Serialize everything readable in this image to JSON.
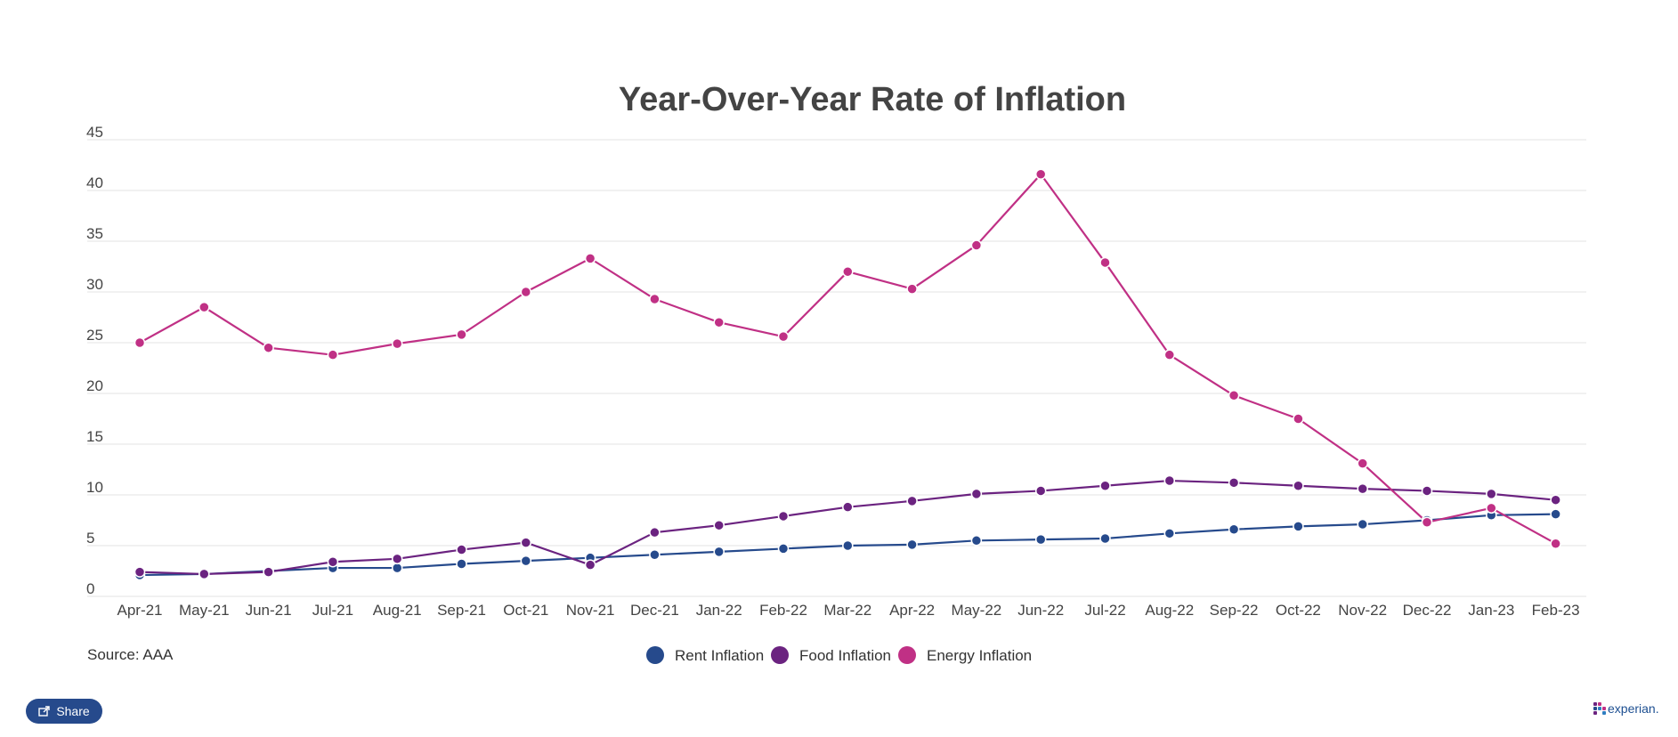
{
  "chart_data": {
    "type": "line",
    "title": "Year-Over-Year Rate of Inflation",
    "xlabel": "",
    "ylabel": "",
    "ylim": [
      0,
      45
    ],
    "yticks": [
      0,
      5,
      10,
      15,
      20,
      25,
      30,
      35,
      40,
      45
    ],
    "grid": true,
    "legend": "bottom-center",
    "categories": [
      "Apr-21",
      "May-21",
      "Jun-21",
      "Jul-21",
      "Aug-21",
      "Sep-21",
      "Oct-21",
      "Nov-21",
      "Dec-21",
      "Jan-22",
      "Feb-22",
      "Mar-22",
      "Apr-22",
      "May-22",
      "Jun-22",
      "Jul-22",
      "Aug-22",
      "Sep-22",
      "Oct-22",
      "Nov-22",
      "Dec-22",
      "Jan-23",
      "Feb-23"
    ],
    "series": [
      {
        "name": "Rent Inflation",
        "color": "#264a8c",
        "values": [
          2.1,
          2.2,
          2.5,
          2.8,
          2.8,
          3.2,
          3.5,
          3.8,
          4.1,
          4.4,
          4.7,
          5.0,
          5.1,
          5.5,
          5.6,
          5.7,
          6.2,
          6.6,
          6.9,
          7.1,
          7.5,
          8.0,
          8.1
        ]
      },
      {
        "name": "Food Inflation",
        "color": "#6b2380",
        "values": [
          2.4,
          2.2,
          2.4,
          3.4,
          3.7,
          4.6,
          5.3,
          3.1,
          6.3,
          7.0,
          7.9,
          8.8,
          9.4,
          10.1,
          10.4,
          10.9,
          11.4,
          11.2,
          10.9,
          10.6,
          10.4,
          10.1,
          9.5
        ]
      },
      {
        "name": "Energy Inflation",
        "color": "#c03085",
        "values": [
          25.0,
          28.5,
          24.5,
          23.8,
          24.9,
          25.8,
          30.0,
          33.3,
          29.3,
          27.0,
          25.6,
          32.0,
          30.3,
          34.6,
          41.6,
          32.9,
          23.8,
          19.8,
          17.5,
          13.1,
          7.3,
          8.7,
          5.2
        ]
      }
    ]
  },
  "source_label": "Source: AAA",
  "share_label": "Share",
  "logo_label": "experian.",
  "logo_colors": [
    "#6b2380",
    "#c03085",
    "#264a8c",
    "#2f7ec1"
  ]
}
